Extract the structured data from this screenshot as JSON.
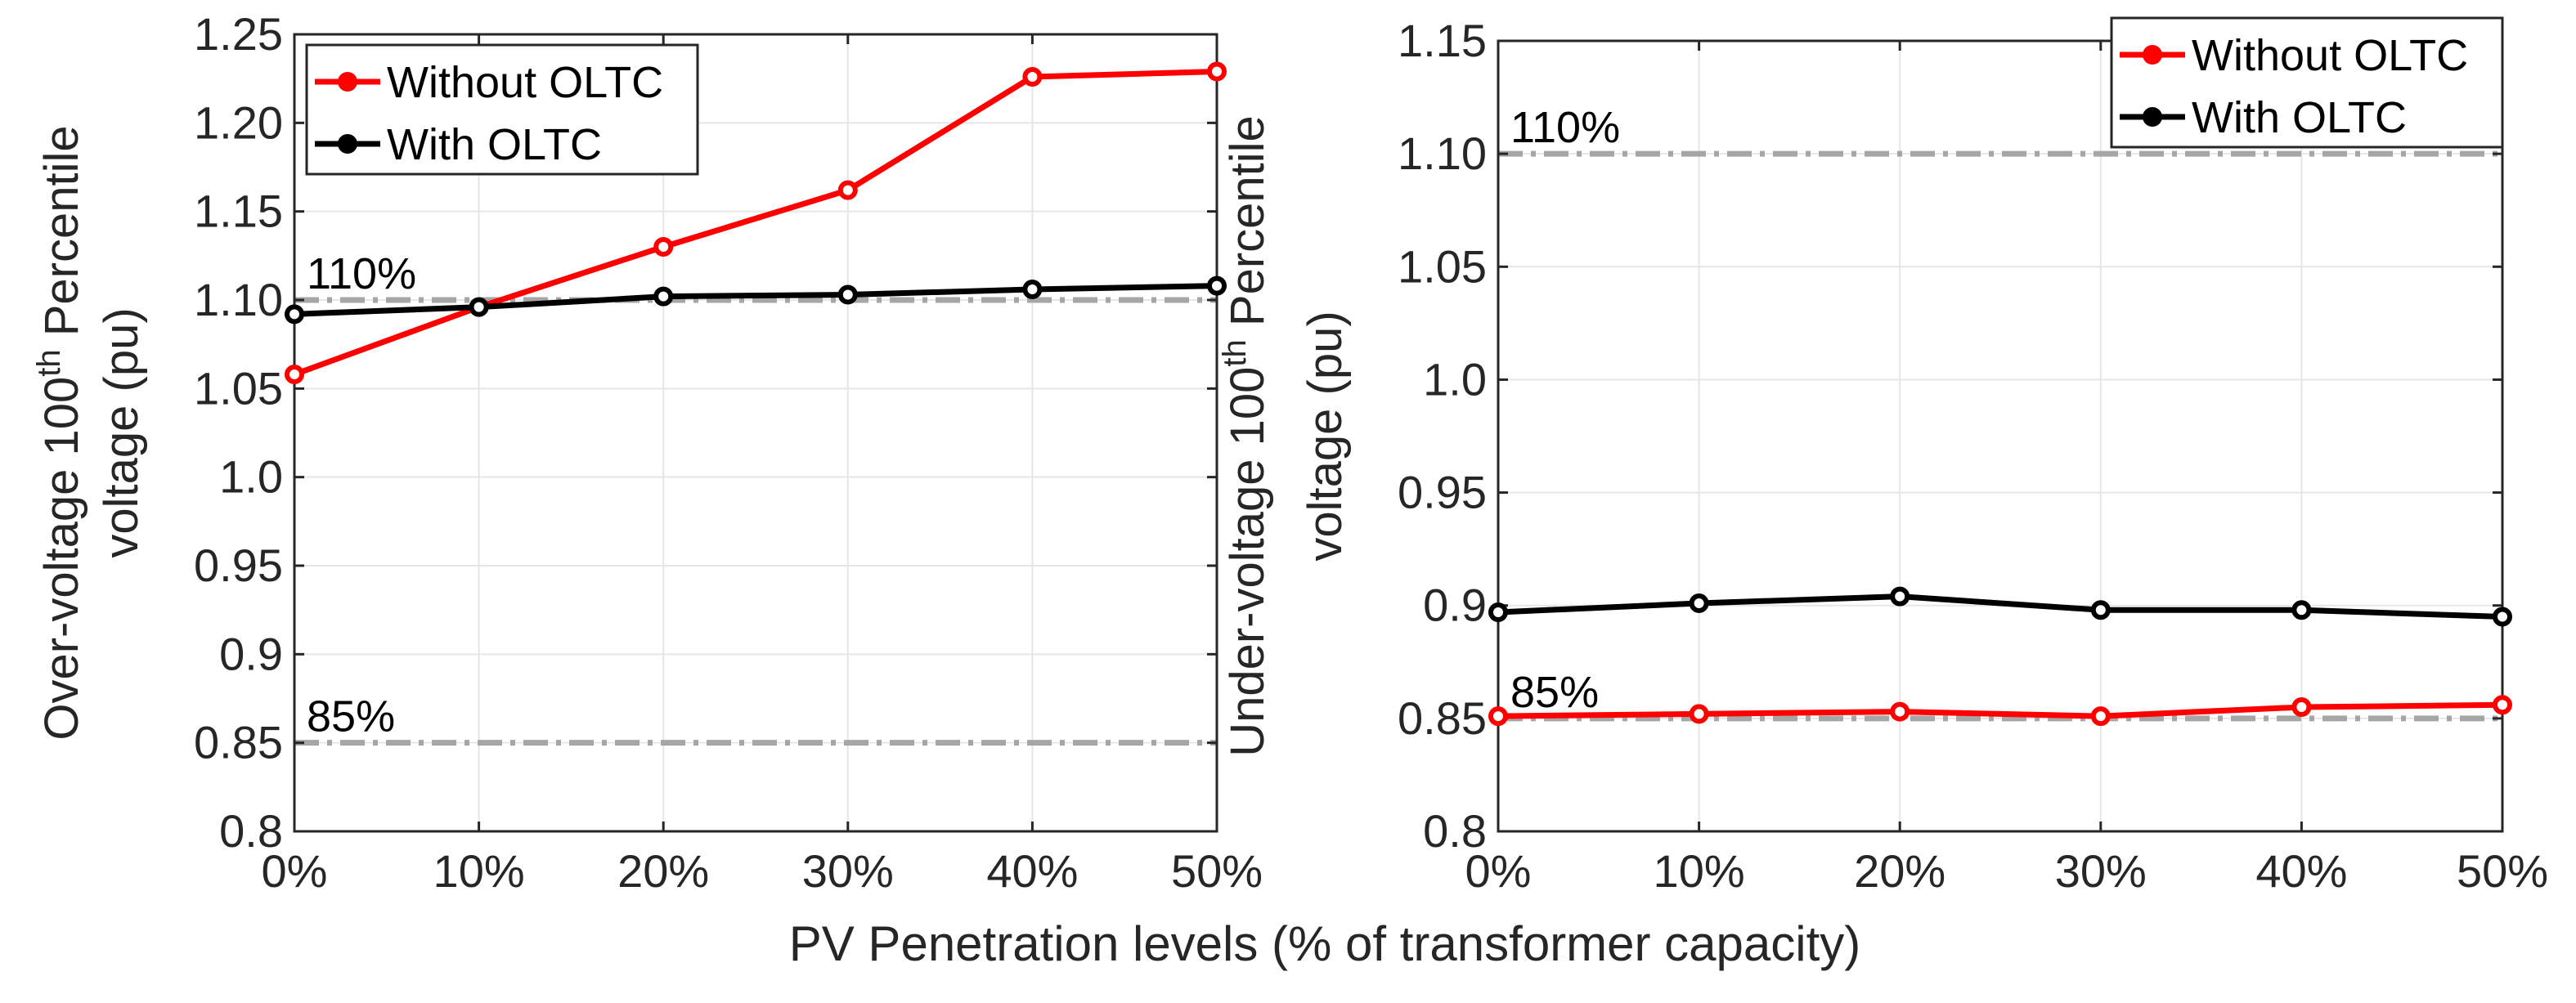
{
  "figure": {
    "xlabel": "PV Penetration levels (% of transformer capacity)"
  },
  "chart_data": [
    {
      "type": "line",
      "name": "over-voltage",
      "categories": [
        "0%",
        "10%",
        "20%",
        "30%",
        "40%",
        "50%"
      ],
      "x": [
        0,
        10,
        20,
        30,
        40,
        50
      ],
      "xlim": [
        0,
        50
      ],
      "ylim": [
        0.8,
        1.25
      ],
      "yticks": [
        0.8,
        0.85,
        0.9,
        0.95,
        1.0,
        1.05,
        1.1,
        1.15,
        1.2,
        1.25
      ],
      "ytick_labels": [
        "0.8",
        "0.85",
        "0.9",
        "0.95",
        "1.0",
        "1.05",
        "1.10",
        "1.15",
        "1.20",
        "1.25"
      ],
      "ylabel_line1_prefix": "Over-voltage 100",
      "ylabel_sup": "th",
      "ylabel_line1_suffix": " Percentile",
      "ylabel_line2": "voltage (pu)",
      "grid": true,
      "legend_position": "top-left",
      "series": [
        {
          "name": "Without OLTC",
          "color": "#ff0000",
          "values": [
            1.058,
            1.096,
            1.13,
            1.162,
            1.226,
            1.229
          ]
        },
        {
          "name": "With OLTC",
          "color": "#000000",
          "values": [
            1.092,
            1.096,
            1.102,
            1.103,
            1.106,
            1.108
          ]
        }
      ],
      "reference_lines": [
        {
          "label": "110%",
          "value": 1.1,
          "color": "#a6a6a6"
        },
        {
          "label": "85%",
          "value": 0.85,
          "color": "#a6a6a6"
        }
      ]
    },
    {
      "type": "line",
      "name": "under-voltage",
      "categories": [
        "0%",
        "10%",
        "20%",
        "30%",
        "40%",
        "50%"
      ],
      "x": [
        0,
        10,
        20,
        30,
        40,
        50
      ],
      "xlim": [
        0,
        50
      ],
      "ylim": [
        0.8,
        1.15
      ],
      "yticks": [
        0.8,
        0.85,
        0.9,
        0.95,
        1.0,
        1.05,
        1.1,
        1.15
      ],
      "ytick_labels": [
        "0.8",
        "0.85",
        "0.9",
        "0.95",
        "1.0",
        "1.05",
        "1.10",
        "1.15"
      ],
      "ylabel_line1_prefix": "Under-voltage 100",
      "ylabel_sup": "th",
      "ylabel_line1_suffix": " Percentile",
      "ylabel_line2": "voltage (pu)",
      "grid": true,
      "legend_position": "top-right",
      "series": [
        {
          "name": "Without OLTC",
          "color": "#ff0000",
          "values": [
            0.851,
            0.852,
            0.853,
            0.851,
            0.855,
            0.856
          ]
        },
        {
          "name": "With OLTC",
          "color": "#000000",
          "values": [
            0.897,
            0.901,
            0.904,
            0.898,
            0.898,
            0.895
          ]
        }
      ],
      "reference_lines": [
        {
          "label": "110%",
          "value": 1.1,
          "color": "#a6a6a6"
        },
        {
          "label": "85%",
          "value": 0.85,
          "color": "#a6a6a6"
        }
      ]
    }
  ]
}
